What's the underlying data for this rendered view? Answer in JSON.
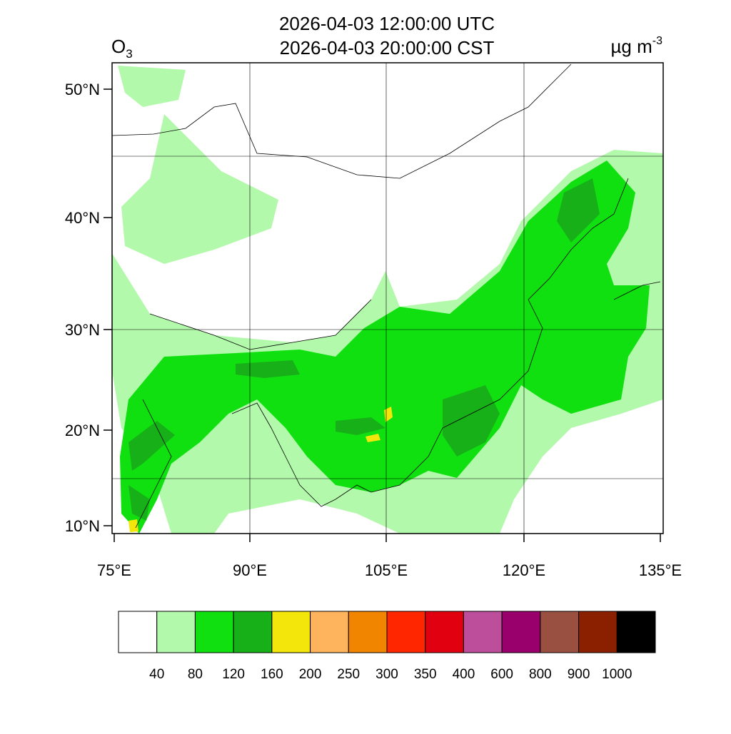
{
  "header": {
    "title_lines": [
      "2026-04-03 12:00:00 UTC",
      "2026-04-03 20:00:00 CST"
    ],
    "variable": {
      "base": "O",
      "sub": "3"
    },
    "units": {
      "base": "µg m",
      "sup": "-3"
    }
  },
  "map": {
    "lat_labels": [
      "50°N",
      "40°N",
      "30°N",
      "20°N",
      "10°N"
    ],
    "lon_labels": [
      "75°E",
      "90°E",
      "105°E",
      "120°E",
      "135°E"
    ]
  },
  "colorbar": {
    "colors": [
      "#ffffff",
      "#b3f9ab",
      "#10e010",
      "#18b018",
      "#f2e60a",
      "#fdb45d",
      "#f28500",
      "#ff2600",
      "#e00010",
      "#bc4e9c",
      "#99006b",
      "#9a5040",
      "#8a2000",
      "#000000"
    ],
    "labels": [
      "40",
      "80",
      "120",
      "160",
      "200",
      "250",
      "300",
      "350",
      "400",
      "600",
      "800",
      "900",
      "1000"
    ]
  }
}
